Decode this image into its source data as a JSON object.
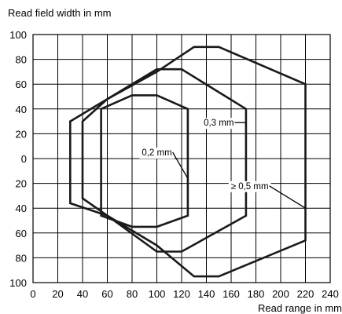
{
  "chart_data": {
    "type": "line",
    "xlabel": "Read range in mm",
    "ylabel": "Read field width in mm",
    "xlim": [
      0,
      240
    ],
    "ylim": [
      -100,
      100
    ],
    "x_ticks": [
      0,
      20,
      40,
      60,
      80,
      100,
      120,
      140,
      160,
      180,
      200,
      220,
      240
    ],
    "x_tick_labels": [
      "0",
      "20",
      "40",
      "60",
      "80",
      "100",
      "120",
      "140",
      "160",
      "180",
      "200",
      "220",
      "240"
    ],
    "y_ticks": [
      100,
      80,
      60,
      40,
      20,
      0,
      -20,
      -40,
      -60,
      -80,
      -100
    ],
    "y_tick_labels": [
      "100",
      "80",
      "60",
      "40",
      "20",
      "0",
      "20",
      "40",
      "60",
      "80",
      "100"
    ],
    "grid": true,
    "series": [
      {
        "name": "0,2 mm",
        "closed": true,
        "points": [
          [
            55,
            40
          ],
          [
            80,
            51
          ],
          [
            100,
            51
          ],
          [
            125,
            40
          ],
          [
            125,
            -46
          ],
          [
            100,
            -55
          ],
          [
            80,
            -55
          ],
          [
            55,
            -46
          ]
        ]
      },
      {
        "name": "0,3 mm",
        "closed": true,
        "points": [
          [
            40,
            30
          ],
          [
            60,
            48
          ],
          [
            100,
            72
          ],
          [
            120,
            72
          ],
          [
            172,
            40
          ],
          [
            172,
            -46
          ],
          [
            120,
            -75
          ],
          [
            100,
            -75
          ],
          [
            60,
            -46
          ],
          [
            40,
            -32
          ]
        ]
      },
      {
        "name": "≥ 0,5 mm",
        "closed": true,
        "points": [
          [
            30,
            30
          ],
          [
            60,
            48
          ],
          [
            100,
            70
          ],
          [
            130,
            90
          ],
          [
            150,
            90
          ],
          [
            220,
            60
          ],
          [
            220,
            -66
          ],
          [
            150,
            -95
          ],
          [
            130,
            -95
          ],
          [
            100,
            -70
          ],
          [
            60,
            -46
          ],
          [
            30,
            -36
          ]
        ]
      }
    ],
    "annotations": [
      {
        "text": "0,2 mm",
        "anchor": [
          100,
          5
        ],
        "leader_to": [
          125,
          -16
        ]
      },
      {
        "text": "0,3 mm",
        "anchor": [
          150,
          29
        ],
        "leader_to": [
          172,
          29
        ]
      },
      {
        "text": "≥ 0,5 mm",
        "anchor": [
          175,
          -22
        ],
        "leader_to": [
          220,
          -40
        ]
      }
    ]
  }
}
